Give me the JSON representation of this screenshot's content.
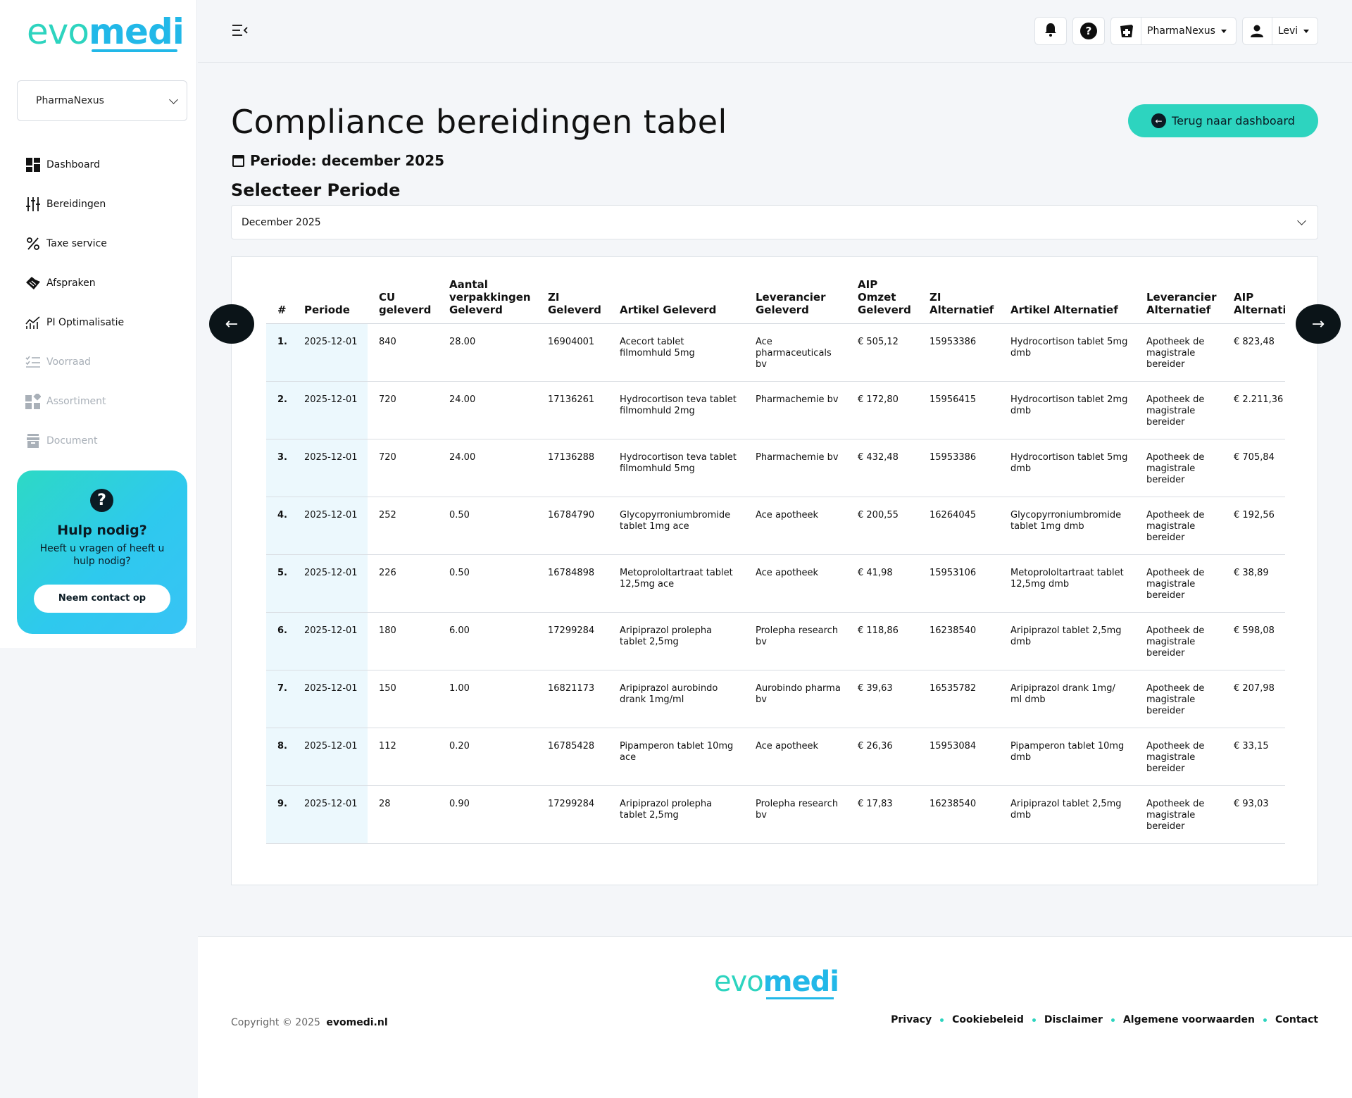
{
  "brand": {
    "logo_evo": "evo",
    "logo_medi": "medi"
  },
  "sidebar": {
    "pharmacy": "PharmaNexus",
    "items": [
      {
        "label": "Dashboard",
        "icon": "grid-icon",
        "enabled": true
      },
      {
        "label": "Bereidingen",
        "icon": "sliders-icon",
        "enabled": true
      },
      {
        "label": "Taxe service",
        "icon": "percent-icon",
        "enabled": true
      },
      {
        "label": "Afspraken",
        "icon": "handshake-icon",
        "enabled": true
      },
      {
        "label": "PI Optimalisatie",
        "icon": "chart-icon",
        "enabled": true
      },
      {
        "label": "Voorraad",
        "icon": "checklist-icon",
        "enabled": false
      },
      {
        "label": "Assortiment",
        "icon": "blocks-icon",
        "enabled": false
      },
      {
        "label": "Document",
        "icon": "archive-icon",
        "enabled": false
      }
    ],
    "help": {
      "title": "Hulp nodig?",
      "text": "Heeft u vragen of heeft u hulp nodig?",
      "button": "Neem contact op"
    }
  },
  "header": {
    "pharmacy": "PharmaNexus",
    "user": "Levi"
  },
  "main": {
    "title": "Compliance bereidingen tabel",
    "back_button": "Terug naar dashboard",
    "periode_label": "Periode: december 2025",
    "select_title": "Selecteer Periode",
    "selected_period": "December 2025"
  },
  "table": {
    "headers": [
      "#",
      "Periode",
      "CU geleverd",
      "Aantal verpakkingen Geleverd",
      "ZI Geleverd",
      "Artikel Geleverd",
      "Leverancier Geleverd",
      "AIP Omzet Geleverd",
      "ZI Alternatief",
      "Artikel Alternatief",
      "Leverancier Alternatief",
      "AIP Alternatief"
    ],
    "rows": [
      [
        "1.",
        "2025-12-01",
        "840",
        "28.00",
        "16904001",
        "Acecort tablet filmomhuld 5mg",
        "Ace pharmaceuticals bv",
        "€ 505,12",
        "15953386",
        "Hydrocortison tablet 5mg dmb",
        "Apotheek de magistrale bereider",
        "€ 823,48"
      ],
      [
        "2.",
        "2025-12-01",
        "720",
        "24.00",
        "17136261",
        "Hydrocortison teva tablet filmomhuld 2mg",
        "Pharmachemie bv",
        "€ 172,80",
        "15956415",
        "Hydrocortison tablet 2mg dmb",
        "Apotheek de magistrale bereider",
        "€ 2.211,36"
      ],
      [
        "3.",
        "2025-12-01",
        "720",
        "24.00",
        "17136288",
        "Hydrocortison teva tablet filmomhuld 5mg",
        "Pharmachemie bv",
        "€ 432,48",
        "15953386",
        "Hydrocortison tablet 5mg dmb",
        "Apotheek de magistrale bereider",
        "€ 705,84"
      ],
      [
        "4.",
        "2025-12-01",
        "252",
        "0.50",
        "16784790",
        "Glycopyrroniumbromide tablet 1mg ace",
        "Ace apotheek",
        "€ 200,55",
        "16264045",
        "Glycopyrroniumbromide tablet 1mg dmb",
        "Apotheek de magistrale bereider",
        "€ 192,56"
      ],
      [
        "5.",
        "2025-12-01",
        "226",
        "0.50",
        "16784898",
        "Metoprololtartraat tablet 12,5mg ace",
        "Ace apotheek",
        "€ 41,98",
        "15953106",
        "Metoprololtartraat tablet 12,5mg dmb",
        "Apotheek de magistrale bereider",
        "€ 38,89"
      ],
      [
        "6.",
        "2025-12-01",
        "180",
        "6.00",
        "17299284",
        "Aripiprazol prolepha tablet 2,5mg",
        "Prolepha research bv",
        "€ 118,86",
        "16238540",
        "Aripiprazol tablet 2,5mg dmb",
        "Apotheek de magistrale bereider",
        "€ 598,08"
      ],
      [
        "7.",
        "2025-12-01",
        "150",
        "1.00",
        "16821173",
        "Aripiprazol aurobindo drank 1mg/ml",
        "Aurobindo pharma bv",
        "€ 39,63",
        "16535782",
        "Aripiprazol drank 1mg/ ml dmb",
        "Apotheek de magistrale bereider",
        "€ 207,98"
      ],
      [
        "8.",
        "2025-12-01",
        "112",
        "0.20",
        "16785428",
        "Pipamperon tablet 10mg ace",
        "Ace apotheek",
        "€ 26,36",
        "15953084",
        "Pipamperon tablet 10mg dmb",
        "Apotheek de magistrale bereider",
        "€ 33,15"
      ],
      [
        "9.",
        "2025-12-01",
        "28",
        "0.90",
        "17299284",
        "Aripiprazol prolepha tablet 2,5mg",
        "Prolepha research bv",
        "€ 17,83",
        "16238540",
        "Aripiprazol tablet 2,5mg dmb",
        "Apotheek de magistrale bereider",
        "€ 93,03"
      ]
    ]
  },
  "footer": {
    "copyright": "Copyright © 2025",
    "site": "evomedi.nl",
    "links": [
      "Privacy",
      "Cookiebeleid",
      "Disclaimer",
      "Algemene voorwaarden",
      "Contact"
    ]
  },
  "colors": {
    "accent_teal": "#2dd4bf",
    "accent_blue": "#22b8e8",
    "dark": "#0b1b24"
  }
}
